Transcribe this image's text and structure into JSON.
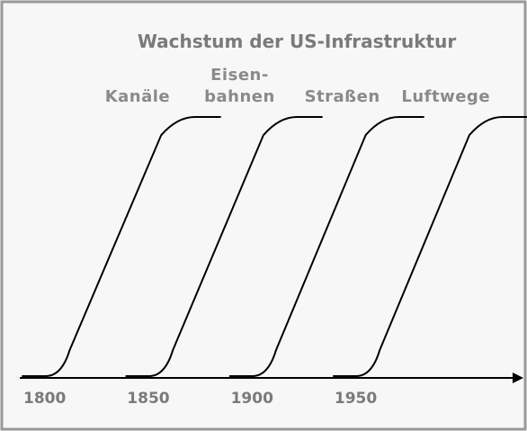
{
  "chart_data": {
    "type": "line",
    "title": "Wachstum der US-Infrastruktur",
    "xlim": [
      1788,
      2030
    ],
    "xticks": [
      1800,
      1850,
      1900,
      1950
    ],
    "ylim": [
      0,
      100
    ],
    "color": "#000000",
    "series": [
      {
        "name": "Kanäle",
        "x": [
          1789,
          1885
        ],
        "values": [
          0,
          100
        ]
      },
      {
        "name": "Eisen-\nbahnen",
        "x": [
          1839,
          1934
        ],
        "values": [
          0,
          100
        ]
      },
      {
        "name": "Straßen",
        "x": [
          1889,
          1983
        ],
        "values": [
          0,
          100
        ]
      },
      {
        "name": "Luftwege",
        "x": [
          1939,
          2033
        ],
        "values": [
          0,
          100
        ]
      }
    ]
  }
}
